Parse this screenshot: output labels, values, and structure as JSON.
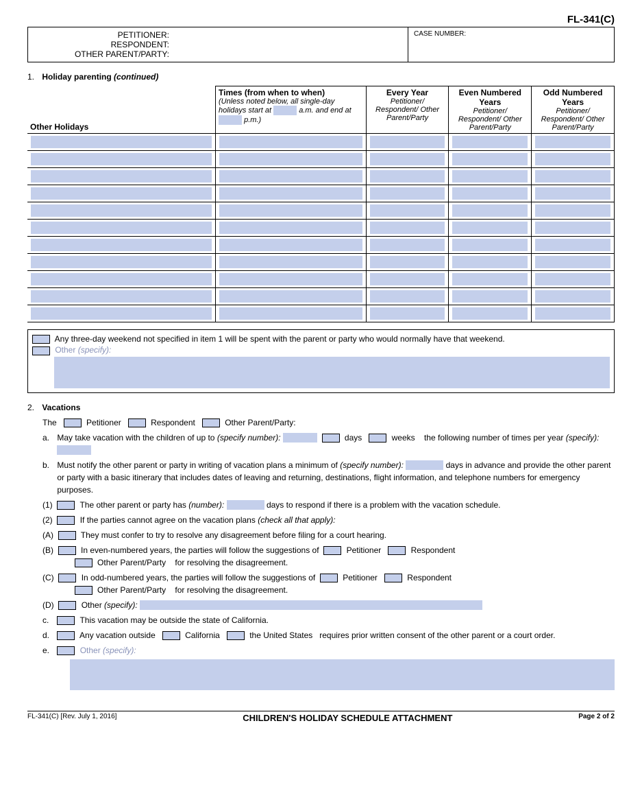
{
  "form_code": "FL-341(C)",
  "header": {
    "petitioner_label": "PETITIONER:",
    "respondent_label": "RESPONDENT:",
    "other_label": "OTHER PARENT/PARTY:",
    "case_label": "CASE NUMBER:"
  },
  "section1": {
    "num": "1.",
    "title": "Holiday parenting",
    "cont": "(continued)",
    "col_oh": "Other Holidays",
    "col_times": "Times (from when to when)",
    "col_times_sub1": "(Unless noted below, all single-day holidays start at",
    "col_times_am": "a.m.",
    "col_times_sub2": "and end at",
    "col_times_pm": "p.m.)",
    "col_every": "Every Year",
    "col_even": "Even Numbered Years",
    "col_odd": "Odd Numbered Years",
    "col_sub": "Petitioner/ Respondent/ Other Parent/Party",
    "note1": "Any three-day weekend not specified in item 1 will be spent with the parent or party who would normally have that weekend.",
    "note2_label": "Other",
    "note2_spec": "(specify):"
  },
  "section2": {
    "num": "2.",
    "title": "Vacations",
    "the": "The",
    "petitioner": "Petitioner",
    "respondent": "Respondent",
    "other_pp": "Other Parent/Party:",
    "a": {
      "lbl": "a.",
      "t1": "May take vacation with the children of up to",
      "spec": "(specify number):",
      "days": "days",
      "weeks": "weeks",
      "t2": "the following number of times per year",
      "spec2": "(specify):"
    },
    "b": {
      "lbl": "b.",
      "t1": "Must notify the other parent or party in writing of vacation plans a minimum of",
      "spec": "(specify number):",
      "t2": "days in advance and provide the other parent or party with a basic itinerary that includes dates of leaving and returning, destinations, flight information, and telephone numbers for emergency purposes.",
      "s1_lbl": "(1)",
      "s1_t1": "The other parent or party has",
      "s1_num": "(number):",
      "s1_t2": "days to respond if there is a problem with the vacation schedule.",
      "s2_lbl": "(2)",
      "s2_t": "If the parties cannot agree on the vacation plans",
      "s2_check": "(check all that apply):",
      "A_lbl": "(A)",
      "A_t": "They must confer to try to resolve any disagreement before filing for a court hearing.",
      "B_lbl": "(B)",
      "B_t1": "In even-numbered years, the parties will follow the suggestions of",
      "B_pet": "Petitioner",
      "B_resp": "Respondent",
      "B_opp": "Other Parent/Party",
      "B_t2": "for resolving the disagreement.",
      "C_lbl": "(C)",
      "C_t1": "In odd-numbered years, the parties will follow the suggestions of",
      "D_lbl": "(D)",
      "D_t": "Other",
      "D_spec": "(specify):"
    },
    "c": {
      "lbl": "c.",
      "t": "This vacation may be outside the state of California."
    },
    "d": {
      "lbl": "d.",
      "t1": "Any vacation outside",
      "ca": "California",
      "us": "the United States",
      "t2": "requires prior written consent of the other parent or a court order."
    },
    "e": {
      "lbl": "e.",
      "t": "Other",
      "spec": "(specify):"
    }
  },
  "footer": {
    "left": "FL-341(C) [Rev. July 1, 2016]",
    "title": "CHILDREN'S HOLIDAY SCHEDULE ATTACHMENT",
    "right": "Page 2 of 2"
  }
}
